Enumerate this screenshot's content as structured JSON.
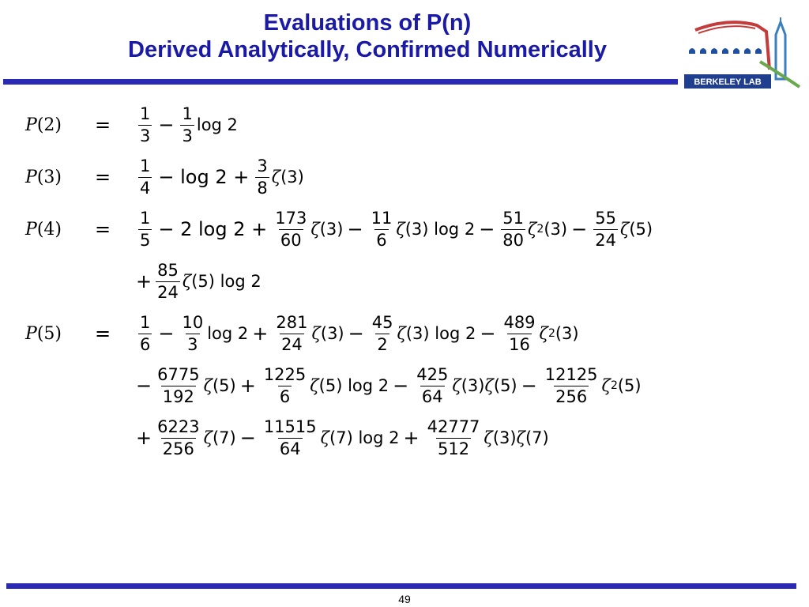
{
  "header": {
    "title_line1": "Evaluations of P(n)",
    "title_line2": "Derived Analytically, Confirmed Numerically",
    "logo_text": "BERKELEY LAB"
  },
  "footer": {
    "page_number": "49"
  },
  "equations": {
    "p2": {
      "lhs": {
        "symbol": "P",
        "arg": "(2)"
      },
      "eq": "=",
      "t1": {
        "num": "1",
        "den": "3"
      },
      "op1": "−",
      "t2": {
        "num": "1",
        "den": "3"
      },
      "log": "log 2"
    },
    "p3": {
      "lhs": {
        "symbol": "P",
        "arg": "(3)"
      },
      "eq": "=",
      "t1": {
        "num": "1",
        "den": "4"
      },
      "op1": "− log 2 +",
      "t2": {
        "num": "3",
        "den": "8"
      },
      "zeta": "ζ",
      "zarg": "(3)"
    },
    "p4": {
      "lhs": {
        "symbol": "P",
        "arg": "(4)"
      },
      "eq": "=",
      "line1": {
        "t1": {
          "num": "1",
          "den": "5"
        },
        "op1": "− 2 log 2 +",
        "t2": {
          "num": "173",
          "den": "60"
        },
        "z2": "(3)",
        "op2": "−",
        "t3": {
          "num": "11",
          "den": "6"
        },
        "z3": "(3) log 2",
        "op3": "−",
        "t4": {
          "num": "51",
          "den": "80"
        },
        "z4sup": "2",
        "z4": "(3)",
        "op4": "−",
        "t5": {
          "num": "55",
          "den": "24"
        },
        "z5": "(5)"
      },
      "line2": {
        "lead": "+",
        "t1": {
          "num": "85",
          "den": "24"
        },
        "z1": "(5) log 2"
      }
    },
    "p5": {
      "lhs": {
        "symbol": "P",
        "arg": "(5)"
      },
      "eq": "=",
      "line1": {
        "t1": {
          "num": "1",
          "den": "6"
        },
        "op1": "−",
        "t2": {
          "num": "10",
          "den": "3"
        },
        "log2": "log 2",
        "op2": "+",
        "t3": {
          "num": "281",
          "den": "24"
        },
        "z3": "(3)",
        "op3": "−",
        "t4": {
          "num": "45",
          "den": "2"
        },
        "z4": "(3) log 2",
        "op4": "−",
        "t5": {
          "num": "489",
          "den": "16"
        },
        "z5sup": "2",
        "z5": "(3)"
      },
      "line2": {
        "lead": "−",
        "t1": {
          "num": "6775",
          "den": "192"
        },
        "z1": "(5)",
        "op1": "+",
        "t2": {
          "num": "1225",
          "den": "6"
        },
        "z2": "(5) log 2",
        "op2": "−",
        "t3": {
          "num": "425",
          "den": "64"
        },
        "z3a": "(3)",
        "z3b": "(5)",
        "op3": "−",
        "t4": {
          "num": "12125",
          "den": "256"
        },
        "z4sup": "2",
        "z4": "(5)"
      },
      "line3": {
        "lead": "+",
        "t1": {
          "num": "6223",
          "den": "256"
        },
        "z1": "(7)",
        "op1": "−",
        "t2": {
          "num": "11515",
          "den": "64"
        },
        "z2": "(7) log 2",
        "op2": "+",
        "t3": {
          "num": "42777",
          "den": "512"
        },
        "z3a": "(3)",
        "z3b": "(7)"
      }
    }
  },
  "colors": {
    "title": "#1a1aa6",
    "rule": "#2a2ab4"
  }
}
